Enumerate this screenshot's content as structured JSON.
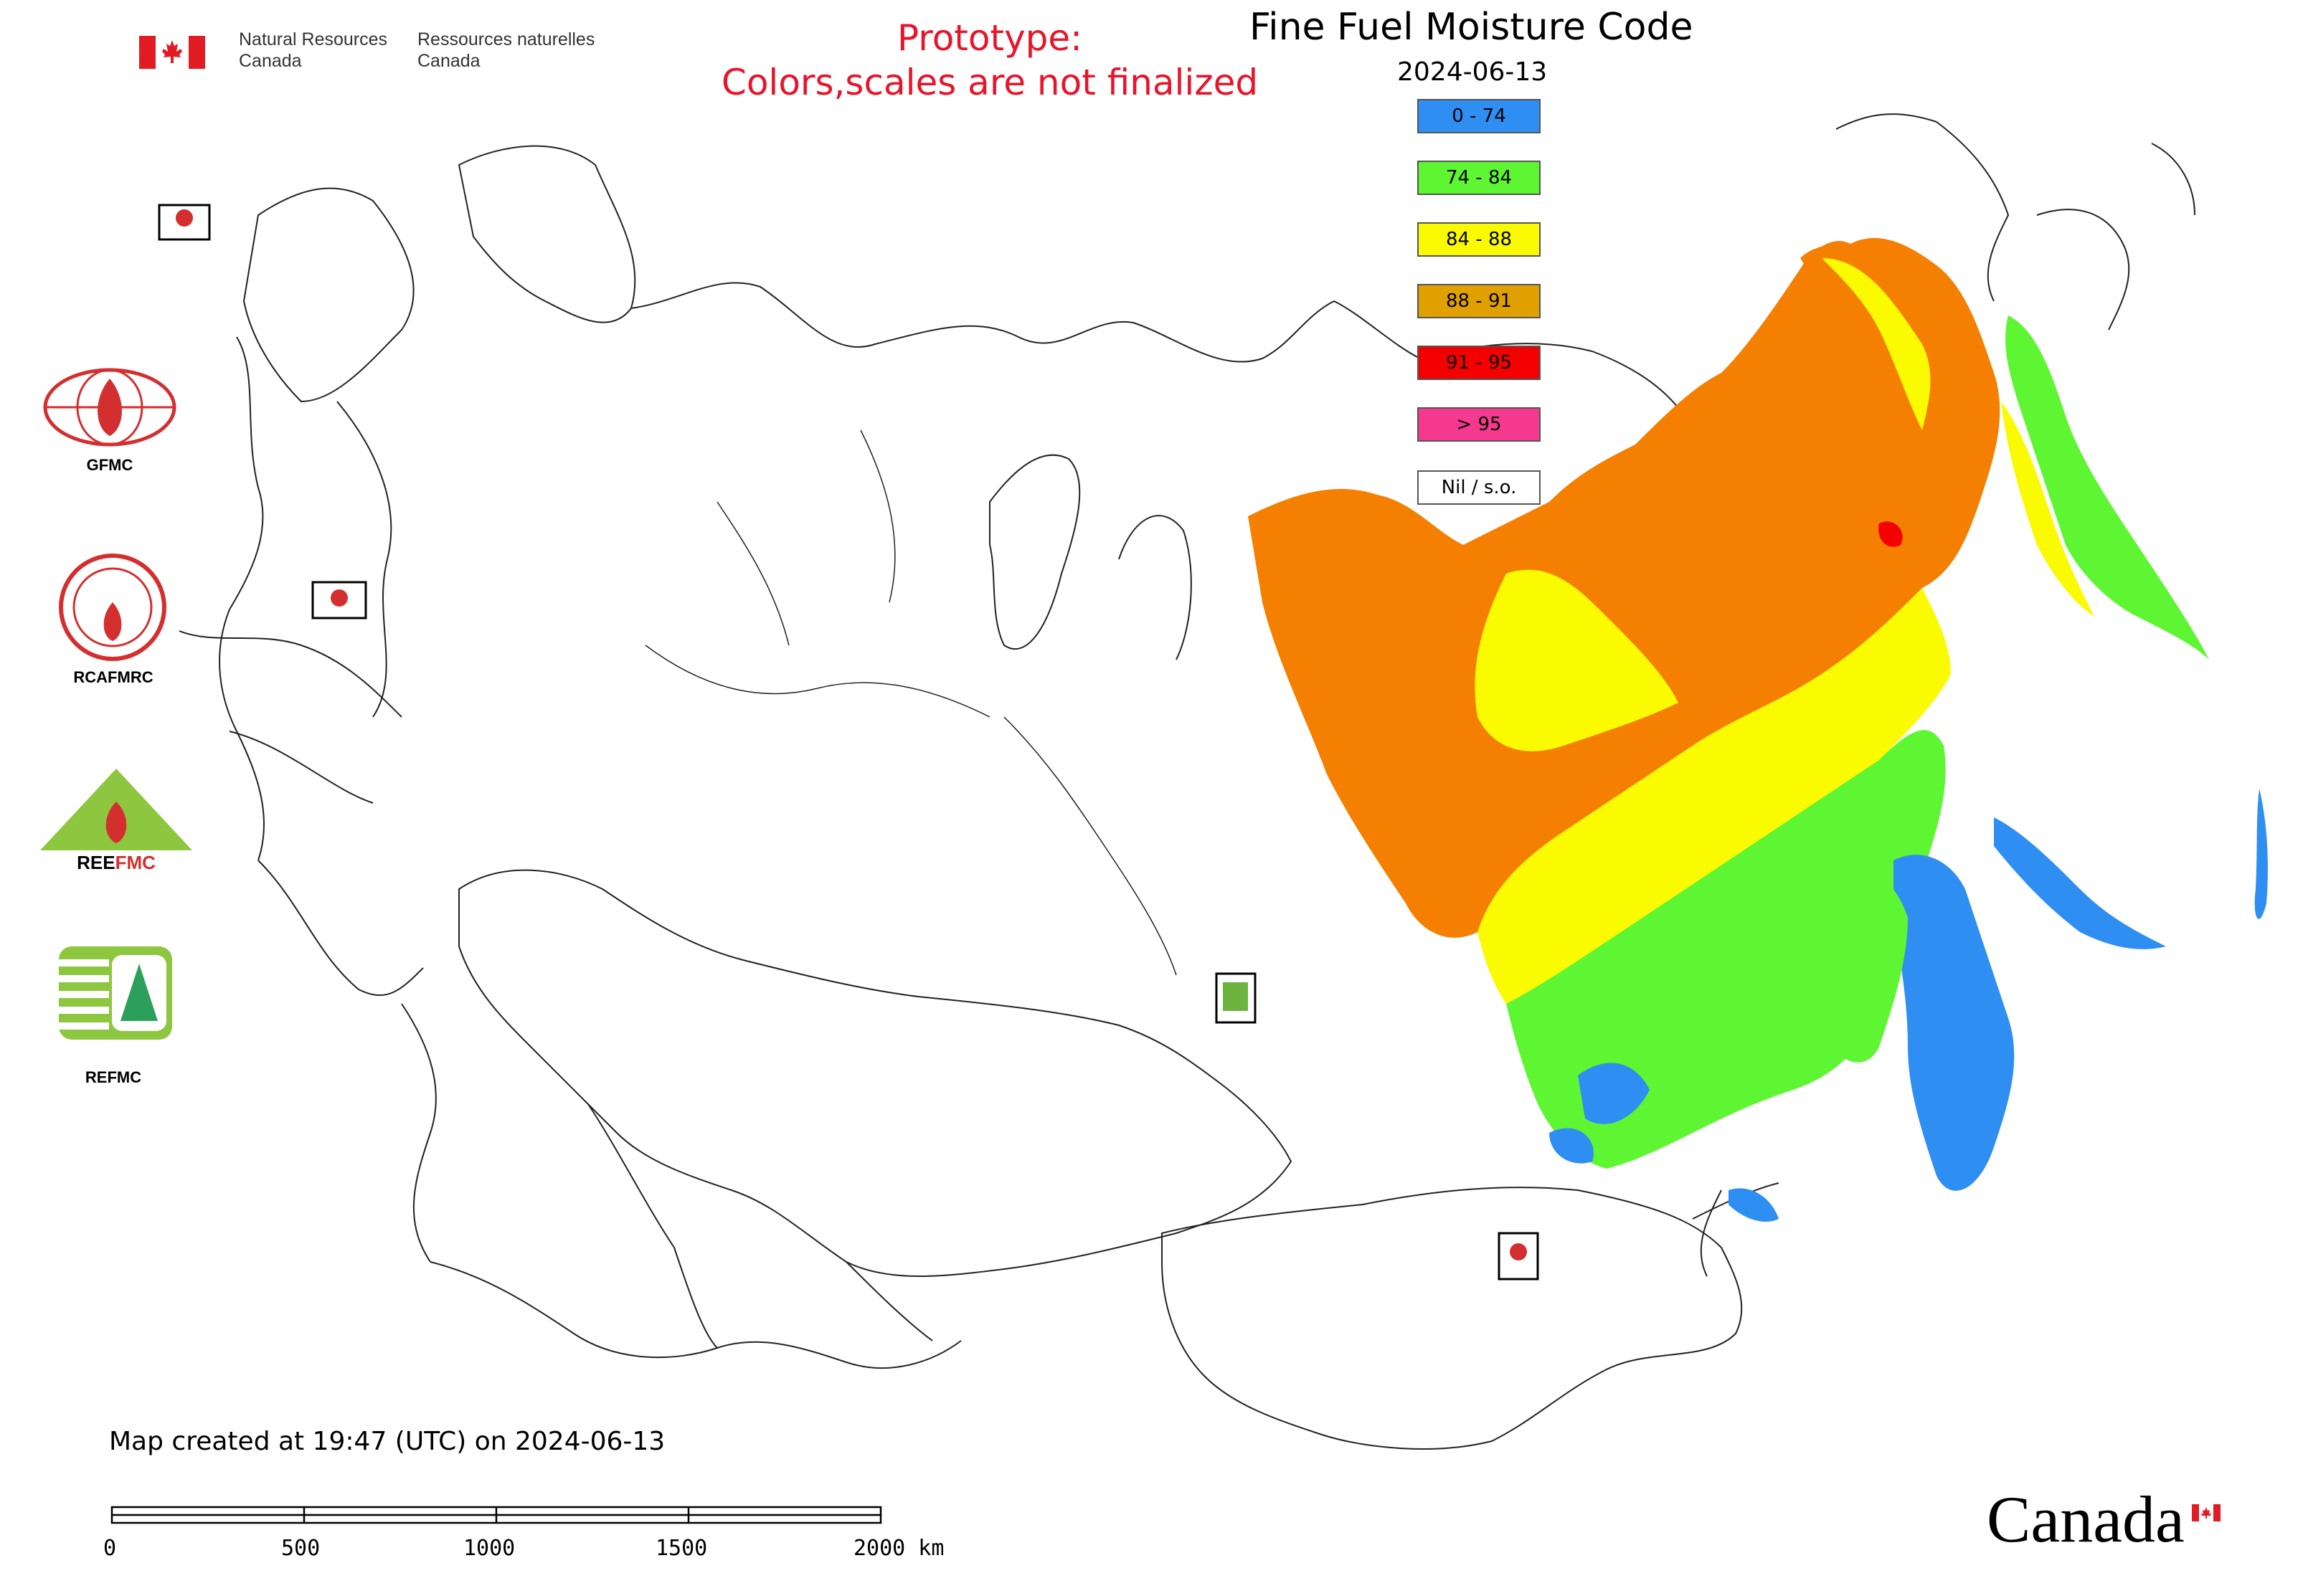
{
  "header": {
    "agency_en_line1": "Natural Resources",
    "agency_en_line2": "Canada",
    "agency_fr_line1": "Ressources naturelles",
    "agency_fr_line2": "Canada"
  },
  "prototype": {
    "line1": "Prototype:",
    "line2": "Colors,scales are not finalized",
    "color": "#e8142a"
  },
  "map": {
    "title": "Fine Fuel Moisture Code",
    "date": "2024-06-13",
    "created_note": "Map created at 19:47 (UTC) on 2024-06-13"
  },
  "legend": [
    {
      "label": "0 - 74",
      "color": "#2f8ef2"
    },
    {
      "label": "74 - 84",
      "color": "#5ef532"
    },
    {
      "label": "84 - 88",
      "color": "#fafa00"
    },
    {
      "label": "88 - 91",
      "color": "#e0a000"
    },
    {
      "label": "91 - 95",
      "color": "#f50000"
    },
    {
      "label": "> 95",
      "color": "#f5398f"
    },
    {
      "label": "Nil / s.o.",
      "color": "#ffffff"
    }
  ],
  "logos": [
    {
      "label": "GFMC",
      "icon": "gfmc-logo-icon"
    },
    {
      "label": "RCAFMRC",
      "icon": "rcafmrc-logo-icon"
    },
    {
      "label": "REEFMC",
      "icon": "reefmc-logo-icon"
    },
    {
      "label": "REFMC",
      "icon": "refmc-logo-icon"
    }
  ],
  "scale_bar": {
    "labels": [
      "0",
      "500",
      "1000",
      "1500",
      "2000 km"
    ]
  },
  "wordmark": "Canada"
}
